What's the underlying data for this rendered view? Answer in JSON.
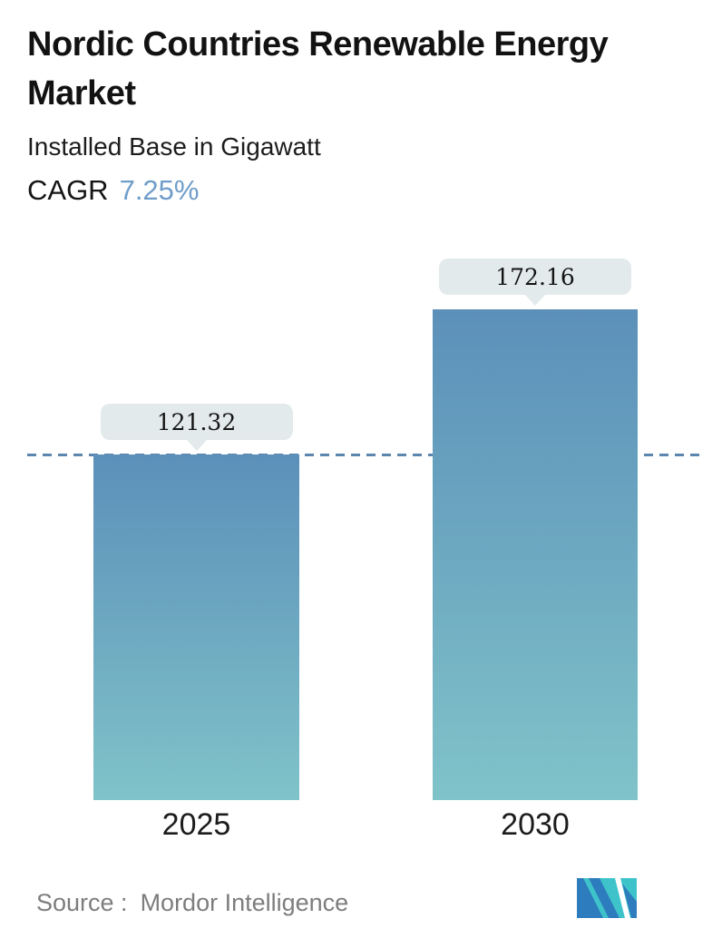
{
  "header": {
    "title": "Nordic Countries Renewable Energy Market",
    "subtitle": "Installed Base in Gigawatt",
    "cagr_label": "CAGR",
    "cagr_value": "7.25%"
  },
  "chart_data": {
    "type": "bar",
    "categories": [
      "2025",
      "2030"
    ],
    "values": [
      121.32,
      172.16
    ],
    "title": "Nordic Countries Renewable Energy Market",
    "xlabel": "",
    "ylabel": "Installed Base in Gigawatt",
    "ylim": [
      0,
      195
    ],
    "grid": false,
    "legend": "none",
    "data_labels": [
      "121.32",
      "172.16"
    ],
    "reference_line": {
      "value": 121.32,
      "style": "dashed",
      "color": "#5b86ad"
    },
    "bar_gradient": {
      "top": "#5c90ba",
      "bottom": "#80c3c9"
    }
  },
  "colors": {
    "accent_cagr": "#6f9dc9",
    "tooltip_bg": "#e3eaeb",
    "dash_line": "#5b86ad",
    "source_text": "#7d7d7d",
    "logo_blue": "#2d7cbd",
    "logo_teal": "#3fc3cb"
  },
  "footer": {
    "source_label": "Source :",
    "source_value": "Mordor Intelligence",
    "logo_name": "mordor-intelligence-logo"
  }
}
